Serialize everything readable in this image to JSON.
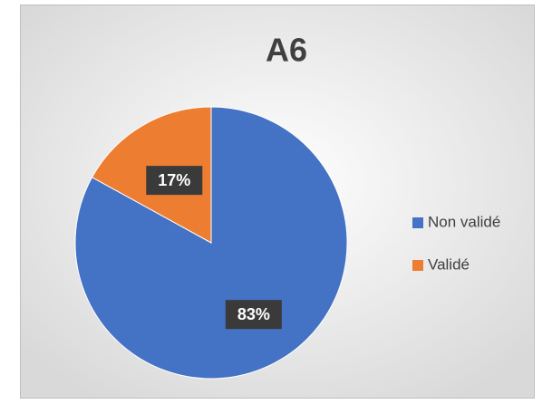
{
  "chart_data": {
    "type": "pie",
    "title": "A6",
    "categories": [
      "Non validé",
      "Validé"
    ],
    "values": [
      83,
      17
    ],
    "value_labels": [
      "83%",
      "17%"
    ],
    "colors": [
      "#4472c4",
      "#ed7d31"
    ],
    "legend": "right"
  }
}
